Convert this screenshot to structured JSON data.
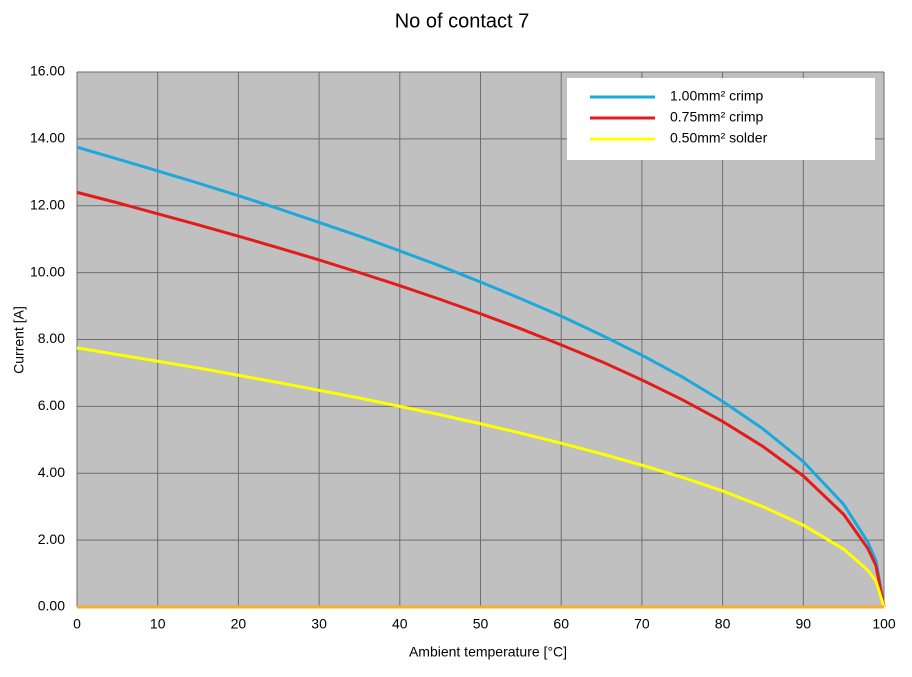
{
  "chart_data": {
    "type": "line",
    "title": "No of contact  7",
    "x_label": "Ambient temperature [°C]",
    "y_label": "Current [A]",
    "x": [
      0,
      5,
      10,
      15,
      20,
      25,
      30,
      35,
      40,
      45,
      50,
      55,
      60,
      65,
      70,
      75,
      80,
      85,
      90,
      95,
      98,
      99,
      100
    ],
    "series": [
      {
        "name": "1.00mm²  crimp",
        "color": "#1ba9dd",
        "values": [
          13.75,
          13.4,
          13.04,
          12.68,
          12.3,
          11.91,
          11.5,
          11.09,
          10.65,
          10.2,
          9.72,
          9.22,
          8.7,
          8.13,
          7.53,
          6.88,
          6.15,
          5.33,
          4.35,
          3.07,
          1.94,
          1.38,
          0
        ]
      },
      {
        "name": "0.75mm²  crimp",
        "color": "#e31b1b",
        "values": [
          12.4,
          12.09,
          11.76,
          11.43,
          11.09,
          10.74,
          10.38,
          10.0,
          9.61,
          9.2,
          8.77,
          8.32,
          7.84,
          7.34,
          6.79,
          6.2,
          5.55,
          4.8,
          3.92,
          2.77,
          1.75,
          1.24,
          0
        ]
      },
      {
        "name": "0.50mm²  solder",
        "color": "#ffff00",
        "values": [
          7.75,
          7.55,
          7.35,
          7.15,
          6.93,
          6.71,
          6.48,
          6.25,
          6.0,
          5.75,
          5.48,
          5.2,
          4.9,
          4.58,
          4.24,
          3.88,
          3.47,
          3.0,
          2.45,
          1.73,
          1.1,
          0.78,
          0
        ]
      }
    ],
    "xlim": [
      0,
      100
    ],
    "xticks": [
      0,
      10,
      20,
      30,
      40,
      50,
      60,
      70,
      80,
      90,
      100
    ],
    "ylim": [
      0,
      16
    ],
    "yticks": [
      {
        "value": 0,
        "label": "0.00"
      },
      {
        "value": 2,
        "label": "2.00"
      },
      {
        "value": 4,
        "label": "4.00"
      },
      {
        "value": 6,
        "label": "6.00"
      },
      {
        "value": 8,
        "label": "8.00"
      },
      {
        "value": 10,
        "label": "10.00"
      },
      {
        "value": 12,
        "label": "12.00"
      },
      {
        "value": 14,
        "label": "14.00"
      },
      {
        "value": 16,
        "label": "16.00"
      }
    ],
    "grid": true,
    "legend": "upper right"
  }
}
